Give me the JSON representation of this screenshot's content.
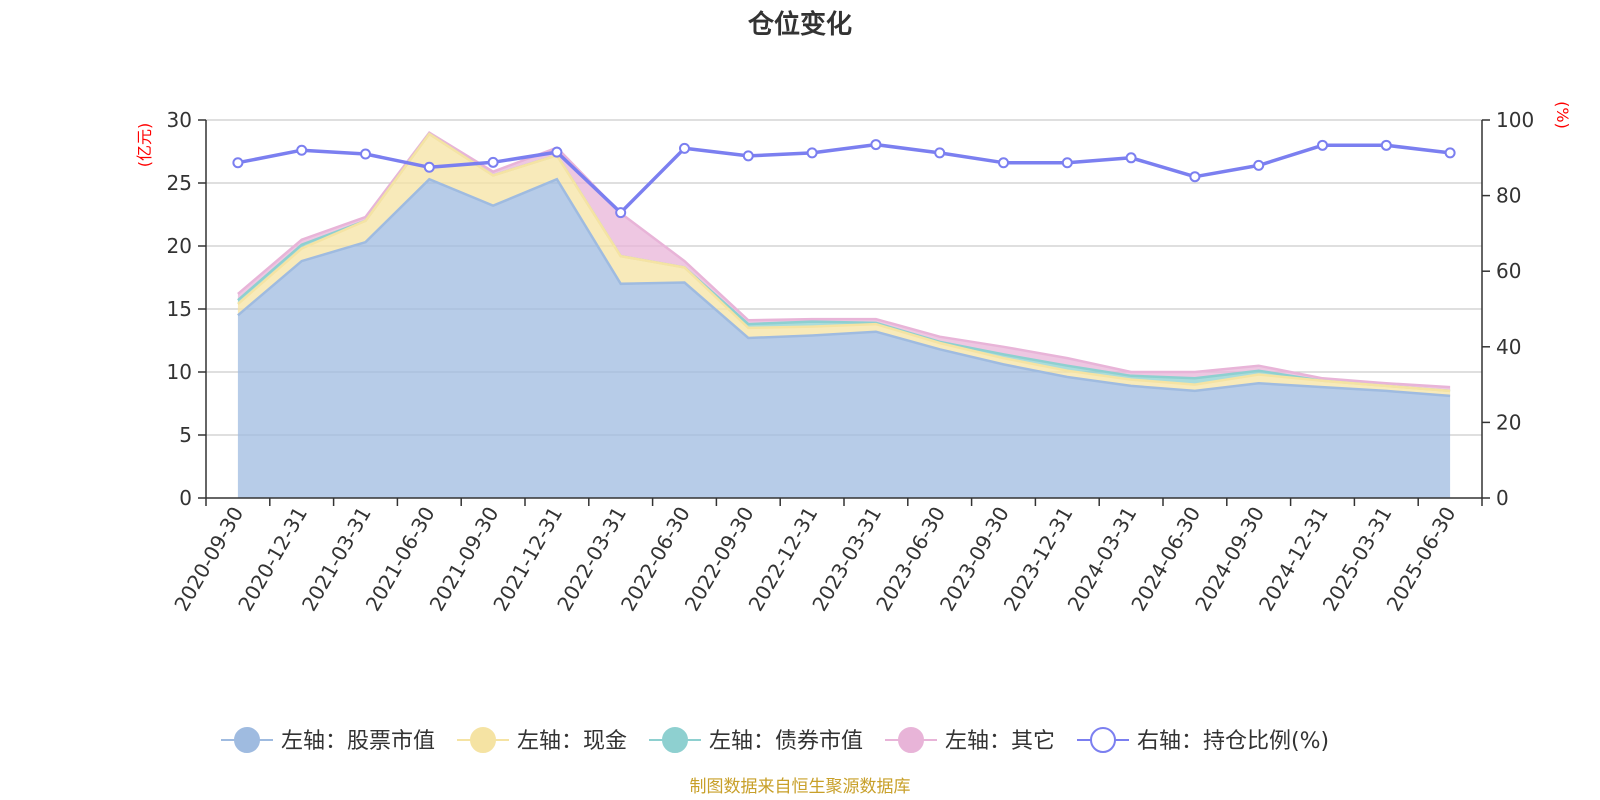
{
  "chart_data": {
    "type": "area",
    "title": "仓位变化",
    "left_axis_unit": "(亿元)",
    "right_axis_unit": "(%)",
    "left_ylim": [
      0,
      30
    ],
    "left_ticks": [
      "0",
      "5",
      "10",
      "15",
      "20",
      "25",
      "30"
    ],
    "right_ylim": [
      0,
      100
    ],
    "right_ticks": [
      "0",
      "20",
      "40",
      "60",
      "80",
      "100"
    ],
    "grid": true,
    "legend_position": "bottom",
    "categories": [
      "2020-09-30",
      "2020-12-31",
      "2021-03-31",
      "2021-06-30",
      "2021-09-30",
      "2021-12-31",
      "2022-03-31",
      "2022-06-30",
      "2022-09-30",
      "2022-12-31",
      "2023-03-31",
      "2023-06-30",
      "2023-09-30",
      "2023-12-31",
      "2024-03-31",
      "2024-06-30",
      "2024-09-30",
      "2024-12-31",
      "2025-03-31",
      "2025-06-30"
    ],
    "stacked_series": [
      {
        "name": "左轴：股票市值",
        "color": "#9fbbe0",
        "values": [
          14.5,
          18.8,
          20.3,
          25.3,
          23.2,
          25.3,
          17.0,
          17.1,
          12.7,
          12.9,
          13.2,
          11.8,
          10.6,
          9.6,
          8.9,
          8.5,
          9.1,
          8.8,
          8.5,
          8.1
        ]
      },
      {
        "name": "左轴：现金",
        "color": "#f5e3a3",
        "values": [
          0.9,
          1.0,
          1.7,
          3.6,
          2.4,
          1.9,
          2.2,
          1.2,
          0.8,
          0.7,
          0.6,
          0.5,
          0.5,
          0.5,
          0.5,
          0.5,
          0.7,
          0.5,
          0.4,
          0.4
        ]
      },
      {
        "name": "左轴：债券市值",
        "color": "#8ed0d0",
        "values": [
          0.3,
          0.3,
          0.0,
          0.0,
          0.0,
          0.0,
          0.0,
          0.0,
          0.3,
          0.4,
          0.1,
          0.1,
          0.3,
          0.4,
          0.3,
          0.5,
          0.3,
          0.0,
          0.0,
          0.0
        ]
      },
      {
        "name": "左轴：其它",
        "color": "#e8b4d8",
        "values": [
          0.5,
          0.4,
          0.3,
          0.1,
          0.3,
          0.6,
          3.4,
          0.5,
          0.3,
          0.2,
          0.3,
          0.4,
          0.6,
          0.6,
          0.3,
          0.5,
          0.4,
          0.2,
          0.2,
          0.3
        ]
      }
    ],
    "line_series": {
      "name": "右轴：持仓比例(%)",
      "color": "#7b7ff0",
      "values": [
        88.7,
        92.0,
        91.0,
        87.5,
        88.8,
        91.5,
        75.5,
        92.5,
        90.5,
        91.3,
        93.5,
        91.3,
        88.7,
        88.7,
        90.0,
        85.0,
        88.0,
        93.3,
        93.3,
        91.3
      ]
    }
  },
  "source_note": "制图数据来自恒生聚源数据库"
}
